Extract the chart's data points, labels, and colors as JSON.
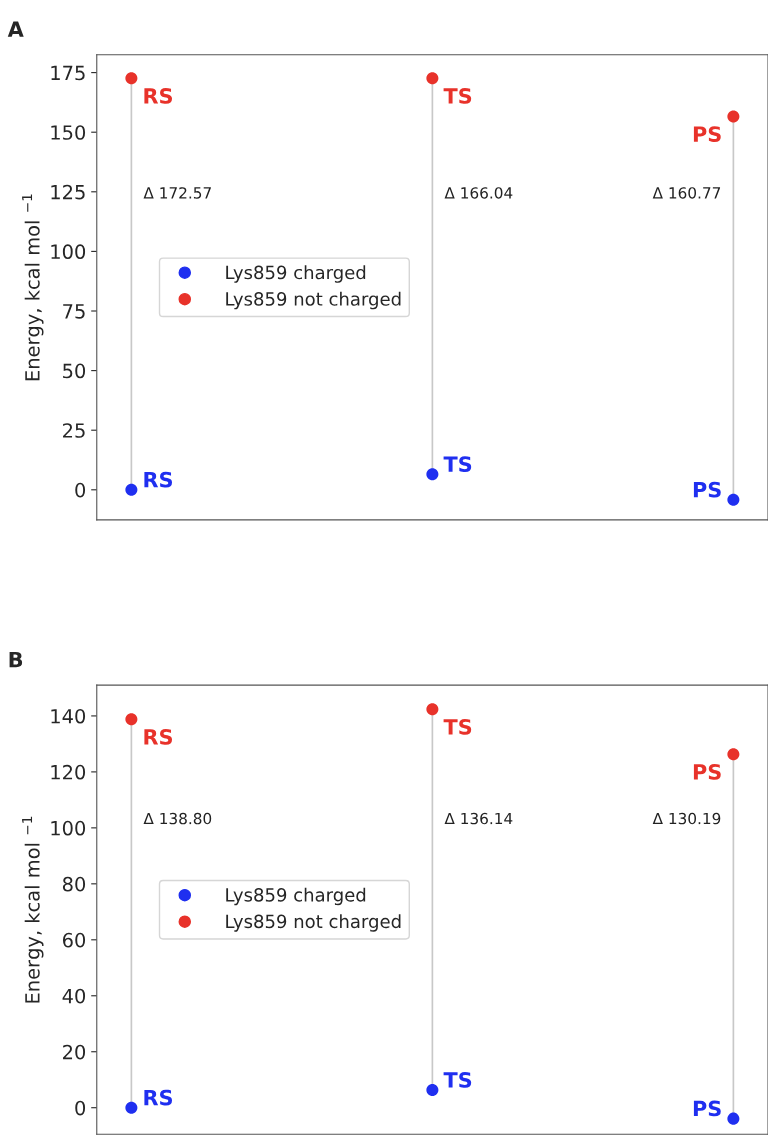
{
  "chart_data": [
    {
      "type": "scatter",
      "title": "A",
      "ylabel": "Energy, kcal mol $^{−1}$",
      "categories": [
        null,
        null,
        null
      ],
      "ylim": [
        -12.6,
        182.5
      ],
      "yticks": [
        0,
        25,
        50,
        75,
        100,
        125,
        150,
        175
      ],
      "grid": false,
      "legend": "center left",
      "marker": "circle",
      "tick_labels": "y",
      "annotations": [
        "Δ 172.57",
        "Δ 166.04",
        "Δ 160.77"
      ],
      "series": [
        {
          "name": "Lys859 charged",
          "color": "#1f2ff0",
          "values": [
            0,
            6.5,
            -4.2
          ],
          "value_labels": [
            "RS",
            "TS",
            "PS"
          ]
        },
        {
          "name": "Lys859 not charged",
          "color": "#e8322a",
          "values": [
            172.6,
            172.6,
            156.6
          ],
          "value_labels": [
            "RS",
            "TS",
            "PS"
          ]
        }
      ]
    },
    {
      "type": "scatter",
      "title": "B",
      "ylabel": "Energy, kcal mol $^{−1}$",
      "categories": [
        null,
        null,
        null
      ],
      "ylim": [
        -9.5,
        151
      ],
      "yticks": [
        0,
        20,
        40,
        60,
        80,
        100,
        120,
        140
      ],
      "grid": false,
      "legend": "center left",
      "marker": "circle",
      "tick_labels": "y",
      "annotations": [
        "Δ 138.80",
        "Δ 136.14",
        "Δ 130.19"
      ],
      "series": [
        {
          "name": "Lys859 charged",
          "color": "#1f2ff0",
          "values": [
            0,
            6.3,
            -3.9
          ],
          "value_labels": [
            "RS",
            "TS",
            "PS"
          ]
        },
        {
          "name": "Lys859 not charged",
          "color": "#e8322a",
          "values": [
            138.8,
            142.4,
            126.3
          ],
          "value_labels": [
            "RS",
            "TS",
            "PS"
          ]
        }
      ]
    }
  ]
}
